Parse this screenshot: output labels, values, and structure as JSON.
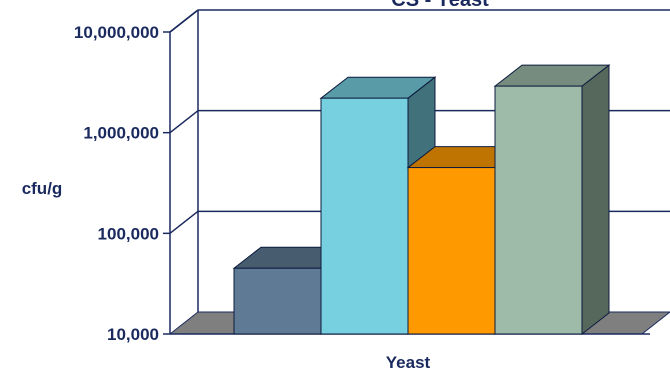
{
  "chart_data": {
    "type": "bar",
    "title": "CS - Yeast",
    "xlabel": "Yeast",
    "ylabel": "cfu/g",
    "yscale": "log",
    "ylim": [
      10000,
      10000000
    ],
    "yticks": [
      10000,
      100000,
      1000000,
      10000000
    ],
    "ytick_labels": [
      "10,000",
      "100,000",
      "1,000,000",
      "10,000,000"
    ],
    "grid": true,
    "series": [
      {
        "values": [
          45000
        ],
        "color": "#5f7a94"
      },
      {
        "values": [
          2200000
        ],
        "color": "#77d0e0"
      },
      {
        "values": [
          450000
        ],
        "color": "#ff9900"
      },
      {
        "values": [
          2900000
        ],
        "color": "#9dbba8"
      }
    ]
  }
}
